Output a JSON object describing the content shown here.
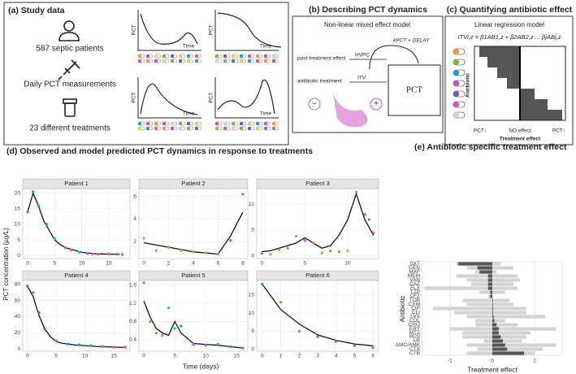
{
  "panel_a": {
    "title": "(a) Study data",
    "items": [
      "587 septic patients",
      "Daily PCT measurements",
      "23 different treatments"
    ],
    "axis_y": "PCT",
    "axis_x": "Time"
  },
  "panel_b": {
    "title": "(b) Describing PCT dynamics",
    "subtitle": "Non-linear mixed effect model",
    "rate": "kPCT + DELAY",
    "post": "post-treatment effect",
    "hv": "HVPC",
    "abx": "antibiotic treatment",
    "itv": "ITV",
    "box": "PCT",
    "minus": "−",
    "plus": "+"
  },
  "panel_c": {
    "title": "(c) Quantifying antibiotic effect",
    "subtitle": "Linear regression model",
    "formula": "ITVi,z = β1AB1,z + β2AB2,z ... βjABj,z",
    "y_label": "Antibiotic",
    "low": "PCT↓",
    "none": "NO effect",
    "high": "PCT↑",
    "x_label": "Treatment effect"
  },
  "chart_data": [
    {
      "type": "facet-line",
      "title": "(d) Observed and model predicted PCT dynamics in response to treatments",
      "x_label": "Time (days)",
      "y_label": "PCT concentration (µg/L)",
      "line_color": "#111111",
      "facets": [
        {
          "title": "Patient 1",
          "xlim": [
            -0.9,
            18.9
          ],
          "xticks": [
            0,
            5,
            10,
            15
          ],
          "ylim": [
            -1,
            21.5
          ],
          "yticks": [
            0,
            5,
            10,
            15,
            20
          ],
          "model": {
            "x": [
              0,
              1,
              2,
              3,
              4,
              5,
              6,
              7,
              8,
              9,
              10,
              11,
              12,
              13,
              14,
              15,
              16,
              17
            ],
            "values": [
              14,
              20,
              16,
              11,
              8,
              5,
              3.5,
              2.5,
              2,
              1.5,
              1,
              0.8,
              0.6,
              0.5,
              0.5,
              0.4,
              0.4,
              0.4
            ]
          },
          "observed": {
            "x": [
              0,
              1,
              2,
              3.5,
              5,
              7,
              8,
              9.5,
              11,
              12,
              13,
              15,
              16.5,
              17.5
            ],
            "values": [
              14,
              20.5,
              16,
              10,
              5.5,
              2.5,
              1.8,
              1,
              0.6,
              0.5,
              0.4,
              0.5,
              0.4,
              0.3
            ],
            "colors": [
              "#1aa6b7",
              "#1aa6b7",
              "#1aa6b7",
              "#1aa6b7",
              "#1ec8d2",
              "#e84fb5",
              "#e84fb5",
              "#1ec8d2",
              "#e84fb5",
              "#e84fb5",
              "#e84fb5",
              "#e84fb5",
              "#e84fb5",
              "#e84fb5"
            ]
          }
        },
        {
          "title": "Patient 2",
          "xlim": [
            -0.4,
            8.4
          ],
          "xticks": [
            0,
            2,
            4,
            6,
            8
          ],
          "ylim": [
            0.5,
            6.7
          ],
          "yticks": [
            2,
            4,
            6
          ],
          "model": {
            "x": [
              0,
              1,
              2,
              3,
              4,
              5,
              6,
              7,
              8
            ],
            "values": [
              1.9,
              1.7,
              1.5,
              1.3,
              1.1,
              1.0,
              0.9,
              2.5,
              4.6
            ]
          },
          "observed": {
            "x": [
              0,
              1,
              2,
              3,
              4,
              5,
              6,
              7,
              8
            ],
            "values": [
              2.3,
              1.2,
              1.5,
              1.2,
              1.1,
              1.0,
              0.9,
              2.1,
              6.2
            ],
            "colors": [
              "#e89a3c",
              "#e89a3c",
              "#7fb13c",
              "#e89a3c",
              "#7fb13c",
              "#e89a3c",
              "#7fb13c",
              "#e84fb5",
              "#e84fb5"
            ]
          }
        },
        {
          "title": "Patient 3",
          "xlim": [
            -0.6,
            13.6
          ],
          "xticks": [
            0,
            5,
            10
          ],
          "ylim": [
            -0.5,
            13
          ],
          "yticks": [
            0,
            5,
            10
          ],
          "model": {
            "x": [
              0,
              1,
              2,
              3,
              4,
              5,
              6,
              7,
              8,
              9,
              10,
              11,
              12,
              13
            ],
            "values": [
              0.8,
              1,
              1.5,
              2,
              2.5,
              3.5,
              2.5,
              1.5,
              2,
              4,
              7,
              12,
              7,
              4
            ]
          },
          "observed": {
            "x": [
              0,
              1,
              2,
              3,
              4,
              5,
              6,
              7,
              8,
              9,
              10,
              11,
              12,
              12.5,
              13
            ],
            "values": [
              0.5,
              0.3,
              1.2,
              1.5,
              3.8,
              3,
              2.5,
              0.6,
              1,
              0.8,
              1,
              12.3,
              8,
              7,
              4.5
            ],
            "colors": [
              "#7fb13c",
              "#e89a3c",
              "#e89a3c",
              "#7fb13c",
              "#e89a3c",
              "#e84fb5",
              "#7fb13c",
              "#e89a3c",
              "#7fb13c",
              "#7fb13c",
              "#e89a3c",
              "#e84fb5",
              "#e84fb5",
              "#e84fb5",
              "#e84fb5"
            ]
          }
        },
        {
          "title": "Patient 4",
          "xlim": [
            -0.8,
            17.8
          ],
          "xticks": [
            0,
            5,
            10,
            15
          ],
          "ylim": [
            -3,
            85
          ],
          "yticks": [
            0,
            20,
            40,
            60,
            80
          ],
          "model": {
            "x": [
              0,
              1,
              2,
              3,
              4,
              5,
              6,
              7,
              8,
              10,
              12,
              14,
              16,
              17
            ],
            "values": [
              78,
              65,
              42,
              25,
              15,
              9,
              7,
              6,
              5,
              4,
              3,
              2.5,
              2,
              2
            ]
          },
          "observed": {
            "x": [
              0,
              1,
              2,
              3,
              5,
              7,
              9,
              11,
              13,
              15,
              17
            ],
            "values": [
              78,
              70,
              45,
              25,
              10,
              6,
              5,
              4,
              3,
              2,
              2
            ],
            "colors": [
              "#6a5acd",
              "#e84fb5",
              "#6a5acd",
              "#6a5acd",
              "#e84fb5",
              "#1aa6b7",
              "#1aa6b7",
              "#1aa6b7",
              "#e84fb5",
              "#e84fb5",
              "#e84fb5"
            ]
          }
        },
        {
          "title": "Patient 5",
          "xlim": [
            -0.8,
            16.8
          ],
          "xticks": [
            0,
            5,
            10,
            15
          ],
          "ylim": [
            0.15,
            1.7
          ],
          "yticks": [
            0.4,
            0.8,
            1.2,
            1.6
          ],
          "model": {
            "x": [
              0,
              1,
              2,
              3,
              4,
              5,
              6,
              8,
              10,
              12,
              14,
              16
            ],
            "values": [
              1.25,
              0.9,
              0.65,
              0.55,
              0.5,
              0.8,
              0.55,
              0.32,
              0.3,
              0.28,
              0.25,
              0.22
            ]
          },
          "observed": {
            "x": [
              0,
              1,
              2,
              3,
              4,
              5,
              6,
              8,
              10,
              12,
              14,
              16
            ],
            "values": [
              1.65,
              0.8,
              0.55,
              0.5,
              1.1,
              0.65,
              0.7,
              0.3,
              0.28,
              0.3,
              0.25,
              0.22
            ],
            "colors": [
              "#7fb13c",
              "#7fb13c",
              "#7fb13c",
              "#7fb13c",
              "#1ec8d2",
              "#1ec8d2",
              "#1aa6b7",
              "#e84fb5",
              "#e84fb5",
              "#1aa6b7",
              "#1aa6b7",
              "#e84fb5"
            ]
          }
        },
        {
          "title": "Patient 6",
          "xlim": [
            -0.3,
            6.3
          ],
          "xticks": [
            0,
            1,
            2,
            3,
            4,
            5,
            6
          ],
          "ylim": [
            -0.5,
            19
          ],
          "yticks": [
            0,
            5,
            10,
            15
          ],
          "model": {
            "x": [
              0,
              1,
              2,
              3,
              4,
              5,
              6
            ],
            "values": [
              18,
              11,
              7,
              4,
              2.5,
              1.5,
              1
            ]
          },
          "observed": {
            "x": [
              0,
              1,
              2,
              3,
              4,
              5,
              6
            ],
            "values": [
              18,
              13,
              5,
              3.5,
              2.2,
              1,
              0.5
            ],
            "colors": [
              "#1aa6b7",
              "#7fb13c",
              "#7fb13c",
              "#1aa6b7",
              "#1aa6b7",
              "#1aa6b7",
              "#e84fb5"
            ]
          }
        }
      ]
    },
    {
      "type": "hbar",
      "title": "(e) Antibiotic specific treatment effect",
      "x_label": "Treatment effect",
      "y_label": "Antibiotic",
      "categories": [
        "SXT",
        "GEN",
        "MXF",
        "MEM",
        "VAN",
        "CAZ",
        "FLX",
        "TZP",
        "CFZ",
        "TOB",
        "CXM",
        "CIP",
        "CLI",
        "LVX",
        "COL",
        "CRO",
        "ERY",
        "MTZ",
        "PEN",
        "I-R",
        "AMC/AMK",
        "CTX",
        "CTB"
      ],
      "values": [
        -0.8,
        -0.35,
        -0.3,
        -0.1,
        -0.1,
        -0.1,
        -0.1,
        -0.05,
        -0.05,
        0,
        0,
        0.02,
        0.02,
        0.03,
        0.05,
        0.1,
        0.15,
        0.15,
        0.2,
        0.25,
        0.3,
        0.35,
        0.75
      ],
      "ci": [
        [
          -0.85,
          0.2
        ],
        [
          -0.6,
          0.5
        ],
        [
          -0.4,
          0.1
        ],
        [
          -0.85,
          0.6
        ],
        [
          -0.6,
          0.65
        ],
        [
          -0.5,
          0.5
        ],
        [
          -1.6,
          0.6
        ],
        [
          -0.3,
          0.3
        ],
        [
          -0.1,
          0
        ],
        [
          -0.7,
          0.4
        ],
        [
          -0.6,
          0.5
        ],
        [
          -1.4,
          0.8
        ],
        [
          -0.9,
          0.8
        ],
        [
          -0.6,
          1.25
        ],
        [
          -0.4,
          0.3
        ],
        [
          -0.4,
          0.6
        ],
        [
          -1.0,
          1.5
        ],
        [
          -0.7,
          0.9
        ],
        [
          -0.7,
          0.8
        ],
        [
          -0.2,
          0.7
        ],
        [
          -0.6,
          1.5
        ],
        [
          -0.35,
          1.2
        ],
        [
          -0.6,
          1.0
        ]
      ],
      "color": "#555555",
      "ci_color": "#d3d3d3",
      "xlim": [
        -1.65,
        1.65
      ],
      "xticks": [
        -1,
        0,
        1
      ],
      "grid": true
    }
  ]
}
